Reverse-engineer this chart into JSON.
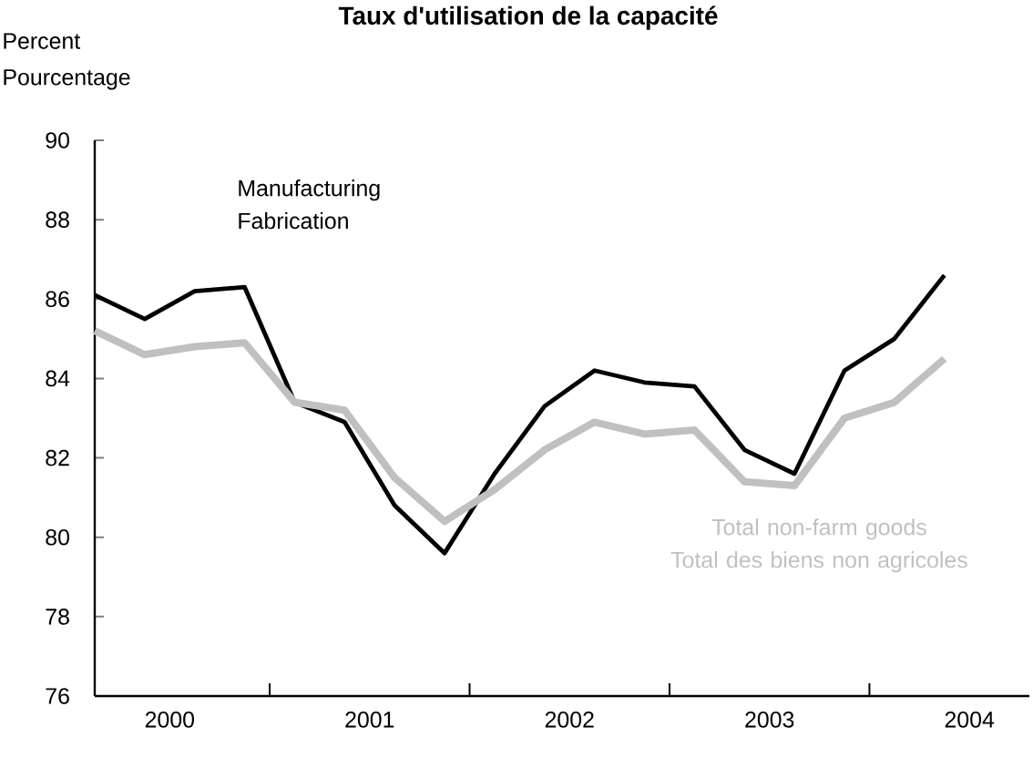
{
  "chart_data": {
    "type": "line",
    "title": "Taux d'utilisation de la capacité",
    "ylabel": "Percent Pourcentage",
    "x": [
      2000.125,
      2000.375,
      2000.625,
      2000.875,
      2001.125,
      2001.375,
      2001.625,
      2001.875,
      2002.125,
      2002.375,
      2002.625,
      2002.875,
      2003.125,
      2003.375,
      2003.625,
      2003.875,
      2004.125,
      2004.375
    ],
    "series": [
      {
        "name": "Manufacturing Fabrication",
        "color": "#000000",
        "values": [
          86.1,
          85.5,
          86.2,
          86.3,
          83.4,
          82.9,
          80.8,
          79.6,
          81.6,
          83.3,
          84.2,
          83.9,
          83.8,
          82.2,
          81.6,
          84.2,
          85.0,
          86.6
        ]
      },
      {
        "name": "Total non-farm goods Total des biens non agricoles",
        "color": "#c0c0c0",
        "values": [
          85.2,
          84.6,
          84.8,
          84.9,
          83.4,
          83.2,
          81.5,
          80.4,
          81.2,
          82.2,
          82.9,
          82.6,
          82.7,
          81.4,
          81.3,
          83.0,
          83.4,
          84.5
        ]
      }
    ],
    "xlim": [
      2000.125,
      2004.8
    ],
    "ylim": [
      76,
      90
    ],
    "yticks": [
      76,
      78,
      80,
      82,
      84,
      86,
      88,
      90
    ],
    "xticks": [
      {
        "value": 2000.5,
        "label": "2000"
      },
      {
        "value": 2001,
        "label": null
      },
      {
        "value": 2001.5,
        "label": "2001"
      },
      {
        "value": 2002,
        "label": null
      },
      {
        "value": 2002.5,
        "label": "2002"
      },
      {
        "value": 2003,
        "label": null
      },
      {
        "value": 2003.5,
        "label": "2003"
      },
      {
        "value": 2004,
        "label": null
      },
      {
        "value": 2004.5,
        "label": "2004"
      }
    ],
    "grid": false,
    "legend": false,
    "marker": "none",
    "line_style": "solid"
  }
}
